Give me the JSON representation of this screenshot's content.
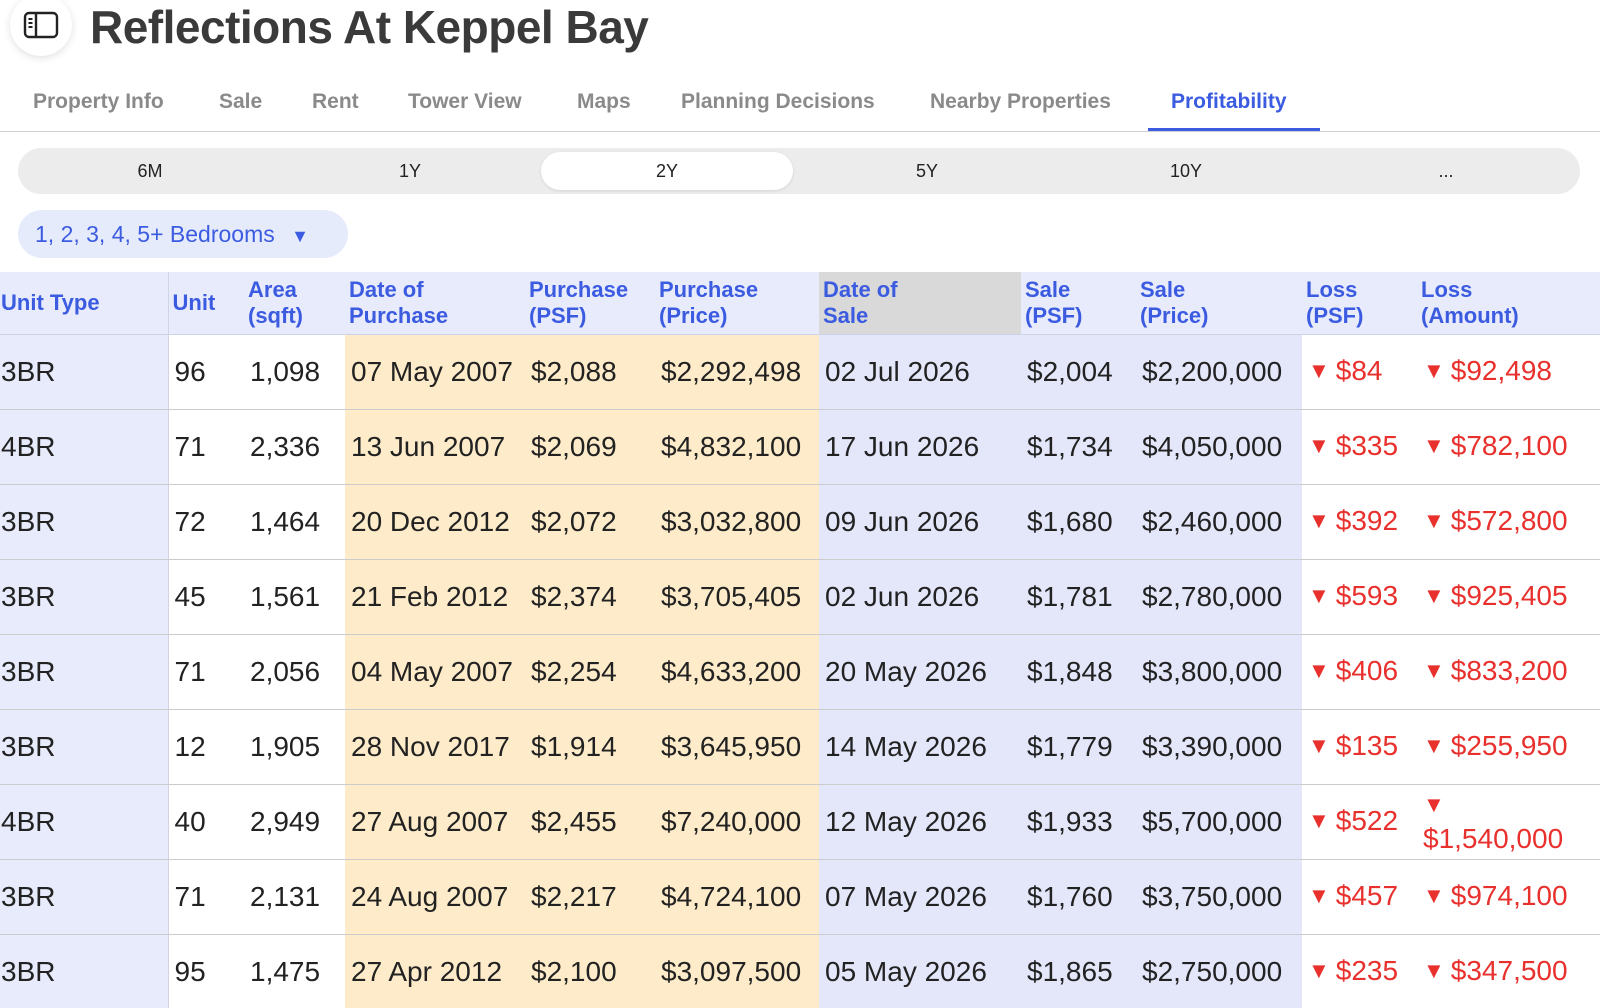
{
  "header": {
    "title": "Reflections At Keppel Bay",
    "sidebar_icon": "sidebar-toggle-icon"
  },
  "tabs": [
    {
      "label": "Property Info",
      "active": false
    },
    {
      "label": "Sale",
      "active": false
    },
    {
      "label": "Rent",
      "active": false
    },
    {
      "label": "Tower View",
      "active": false
    },
    {
      "label": "Maps",
      "active": false
    },
    {
      "label": "Planning Decisions",
      "active": false
    },
    {
      "label": "Nearby Properties",
      "active": false
    },
    {
      "label": "Profitability",
      "active": true
    }
  ],
  "periods": [
    {
      "label": "6M",
      "active": false
    },
    {
      "label": "1Y",
      "active": false
    },
    {
      "label": "2Y",
      "active": true
    },
    {
      "label": "5Y",
      "active": false
    },
    {
      "label": "10Y",
      "active": false
    },
    {
      "label": "...",
      "active": false
    }
  ],
  "bedroom_filter": {
    "label": "1, 2, 3, 4, 5+ Bedrooms",
    "icon": "triangle-down-icon"
  },
  "colors": {
    "accent": "#3b5be0",
    "purchase_bg": "#fdebc9",
    "sale_bg": "#e4e7fa",
    "loss": "#e8302d"
  },
  "table": {
    "columns": [
      {
        "line1": "Unit Type",
        "line2": ""
      },
      {
        "line1": "Unit",
        "line2": ""
      },
      {
        "line1": "Area",
        "line2": "(sqft)"
      },
      {
        "line1": "Date of",
        "line2": "Purchase"
      },
      {
        "line1": "Purchase",
        "line2": "(PSF)"
      },
      {
        "line1": "Purchase",
        "line2": "(Price)"
      },
      {
        "line1": "Date of",
        "line2": "Sale"
      },
      {
        "line1": "Sale",
        "line2": "(PSF)"
      },
      {
        "line1": "Sale",
        "line2": "(Price)"
      },
      {
        "line1": "Loss",
        "line2": "(PSF)"
      },
      {
        "line1": "Loss",
        "line2": "(Amount)"
      }
    ],
    "loss_marker": "▼",
    "rows": [
      [
        "3BR",
        "96",
        "1,098",
        "07 May 2007",
        "$2,088",
        "$2,292,498",
        "02 Jul 2026",
        "$2,004",
        "$2,200,000",
        "$84",
        "$92,498"
      ],
      [
        "4BR",
        "71",
        "2,336",
        "13 Jun 2007",
        "$2,069",
        "$4,832,100",
        "17 Jun 2026",
        "$1,734",
        "$4,050,000",
        "$335",
        "$782,100"
      ],
      [
        "3BR",
        "72",
        "1,464",
        "20 Dec 2012",
        "$2,072",
        "$3,032,800",
        "09 Jun 2026",
        "$1,680",
        "$2,460,000",
        "$392",
        "$572,800"
      ],
      [
        "3BR",
        "45",
        "1,561",
        "21 Feb 2012",
        "$2,374",
        "$3,705,405",
        "02 Jun 2026",
        "$1,781",
        "$2,780,000",
        "$593",
        "$925,405"
      ],
      [
        "3BR",
        "71",
        "2,056",
        "04 May 2007",
        "$2,254",
        "$4,633,200",
        "20 May 2026",
        "$1,848",
        "$3,800,000",
        "$406",
        "$833,200"
      ],
      [
        "3BR",
        "12",
        "1,905",
        "28 Nov 2017",
        "$1,914",
        "$3,645,950",
        "14 May 2026",
        "$1,779",
        "$3,390,000",
        "$135",
        "$255,950"
      ],
      [
        "4BR",
        "40",
        "2,949",
        "27 Aug 2007",
        "$2,455",
        "$7,240,000",
        "12 May 2026",
        "$1,933",
        "$5,700,000",
        "$522",
        "$1,540,000"
      ],
      [
        "3BR",
        "71",
        "2,131",
        "24 Aug 2007",
        "$2,217",
        "$4,724,100",
        "07 May 2026",
        "$1,760",
        "$3,750,000",
        "$457",
        "$974,100"
      ],
      [
        "3BR",
        "95",
        "1,475",
        "27 Apr 2012",
        "$2,100",
        "$3,097,500",
        "05 May 2026",
        "$1,865",
        "$2,750,000",
        "$235",
        "$347,500"
      ]
    ]
  }
}
